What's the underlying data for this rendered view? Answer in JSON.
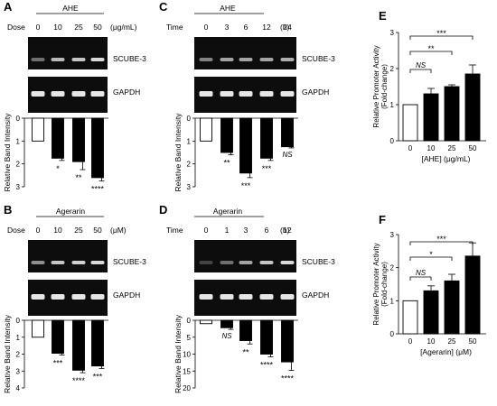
{
  "panels": {
    "A": {
      "label": "A",
      "title": "AHE",
      "row_label": "Dose",
      "unit": "(μg/mL)",
      "lanes": [
        "0",
        "10",
        "25",
        "50"
      ],
      "band_labels": [
        "SCUBE-3",
        "GAPDH"
      ],
      "axis_label": "Relative Band Intensity",
      "y_ticks": [
        "0",
        "1",
        "2",
        "3"
      ]
    },
    "B": {
      "label": "B",
      "title": "Agerarin",
      "row_label": "Dose",
      "unit": "(μM)",
      "lanes": [
        "0",
        "10",
        "25",
        "50"
      ],
      "band_labels": [
        "SCUBE-3",
        "GAPDH"
      ],
      "axis_label": "Relative Band Intensity",
      "y_ticks": [
        "0",
        "1",
        "2",
        "3",
        "4"
      ]
    },
    "C": {
      "label": "C",
      "title": "AHE",
      "row_label": "Time",
      "unit": "(h)",
      "lanes": [
        "0",
        "3",
        "6",
        "12",
        "24"
      ],
      "band_labels": [
        "SCUBE-3",
        "GAPDH"
      ],
      "axis_label": "Relative Band Intensity",
      "y_ticks": [
        "0",
        "1",
        "2",
        "3"
      ]
    },
    "D": {
      "label": "D",
      "title": "Agerarin",
      "row_label": "Time",
      "unit": "(h)",
      "lanes": [
        "0",
        "1",
        "3",
        "6",
        "12"
      ],
      "band_labels": [
        "SCUBE-3",
        "GAPDH"
      ],
      "axis_label": "Relative Band Intensity",
      "y_ticks": [
        "0",
        "5",
        "10",
        "15",
        "20"
      ]
    },
    "E": {
      "label": "E",
      "ylabel": "Relative Promoter Activity",
      "ylabel2": "(Fold-change)",
      "xlabel": "[AHE] (μg/mL)",
      "y_ticks": [
        "0",
        "1",
        "2",
        "3"
      ],
      "x_ticks": [
        "0",
        "10",
        "25",
        "50"
      ],
      "brackets": [
        "NS",
        "**",
        "***"
      ]
    },
    "F": {
      "label": "F",
      "ylabel": "Relative Promoter Activity",
      "ylabel2": "(Fold-change)",
      "xlabel": "[Agerarin] (μM)",
      "y_ticks": [
        "0",
        "1",
        "2",
        "3"
      ],
      "x_ticks": [
        "0",
        "10",
        "25",
        "50"
      ],
      "brackets": [
        "NS",
        "*",
        "***"
      ]
    }
  },
  "chart_data": [
    {
      "panel": "A",
      "type": "bar",
      "categories": [
        "0",
        "10",
        "25",
        "50"
      ],
      "values": [
        1.0,
        1.75,
        1.9,
        2.6
      ],
      "errors": [
        0,
        0.1,
        0.35,
        0.15
      ],
      "significance": [
        "",
        "*",
        "**",
        "****"
      ],
      "ylim": [
        0,
        3
      ],
      "direction": "down",
      "ylabel": "Relative Band Intensity"
    },
    {
      "panel": "B",
      "type": "bar",
      "categories": [
        "0",
        "10",
        "25",
        "50"
      ],
      "values": [
        1.0,
        1.95,
        2.95,
        2.7
      ],
      "errors": [
        0,
        0.1,
        0.15,
        0.15
      ],
      "significance": [
        "",
        "***",
        "****",
        "***"
      ],
      "ylim": [
        0,
        4
      ],
      "direction": "down",
      "ylabel": "Relative Band Intensity"
    },
    {
      "panel": "C",
      "type": "bar",
      "categories": [
        "0",
        "3",
        "6",
        "12",
        "24"
      ],
      "values": [
        1.0,
        1.5,
        2.4,
        1.75,
        1.25
      ],
      "errors": [
        0,
        0.1,
        0.2,
        0.1,
        0.05
      ],
      "significance": [
        "",
        "**",
        "***",
        "***",
        "NS"
      ],
      "ylim": [
        0,
        3
      ],
      "direction": "down",
      "ylabel": "Relative Band Intensity"
    },
    {
      "panel": "D",
      "type": "bar",
      "categories": [
        "0",
        "1",
        "3",
        "6",
        "12"
      ],
      "values": [
        1.0,
        2.2,
        6.0,
        10.0,
        12.3
      ],
      "errors": [
        0,
        0.5,
        1.0,
        0.8,
        2.5
      ],
      "significance": [
        "",
        "NS",
        "**",
        "****",
        "****"
      ],
      "ylim": [
        0,
        20
      ],
      "direction": "down",
      "ylabel": "Relative Band Intensity"
    },
    {
      "panel": "E",
      "type": "bar",
      "categories": [
        "0",
        "10",
        "25",
        "50"
      ],
      "values": [
        1.0,
        1.3,
        1.5,
        1.85
      ],
      "errors": [
        0,
        0.15,
        0.05,
        0.25
      ],
      "ylim": [
        0,
        3
      ],
      "xlabel": "[AHE] (μg/mL)",
      "ylabel": "Relative Promoter Activity (Fold-change)"
    },
    {
      "panel": "F",
      "type": "bar",
      "categories": [
        "0",
        "10",
        "25",
        "50"
      ],
      "values": [
        1.0,
        1.3,
        1.6,
        2.35
      ],
      "errors": [
        0,
        0.15,
        0.2,
        0.4
      ],
      "ylim": [
        0,
        3
      ],
      "xlabel": "[Agerarin] (μM)",
      "ylabel": "Relative Promoter Activity (Fold-change)"
    }
  ]
}
